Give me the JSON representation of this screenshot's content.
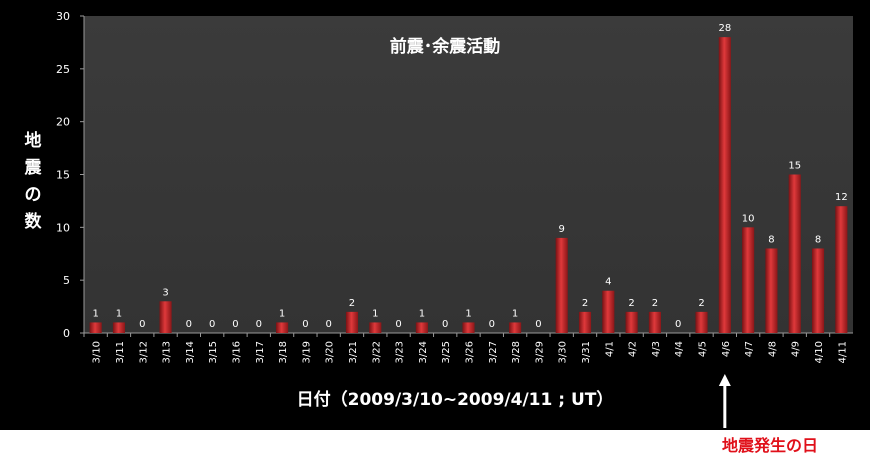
{
  "chart_data": {
    "type": "bar",
    "title": "前震･余震活動",
    "ylabel": "地震の数",
    "xlabel": "日付（2009/3/10~2009/4/11 ; UT）",
    "ylim": [
      0,
      30
    ],
    "yticks": [
      0,
      5,
      10,
      15,
      20,
      25,
      30
    ],
    "grid": false,
    "categories": [
      "3/10",
      "3/11",
      "3/12",
      "3/13",
      "3/14",
      "3/15",
      "3/16",
      "3/17",
      "3/18",
      "3/19",
      "3/20",
      "3/21",
      "3/22",
      "3/23",
      "3/24",
      "3/25",
      "3/26",
      "3/27",
      "3/28",
      "3/29",
      "3/30",
      "3/31",
      "4/1",
      "4/2",
      "4/3",
      "4/4",
      "4/5",
      "4/6",
      "4/7",
      "4/8",
      "4/9",
      "4/10",
      "4/11"
    ],
    "values": [
      1,
      1,
      0,
      3,
      0,
      0,
      0,
      0,
      1,
      0,
      0,
      2,
      1,
      0,
      1,
      0,
      1,
      0,
      1,
      0,
      9,
      2,
      4,
      2,
      2,
      0,
      2,
      28,
      10,
      8,
      15,
      8,
      12
    ],
    "annotation": {
      "text": "地震発生の日",
      "category": "4/6",
      "color": "#e0101a"
    },
    "bar_color": "#c0282a"
  }
}
